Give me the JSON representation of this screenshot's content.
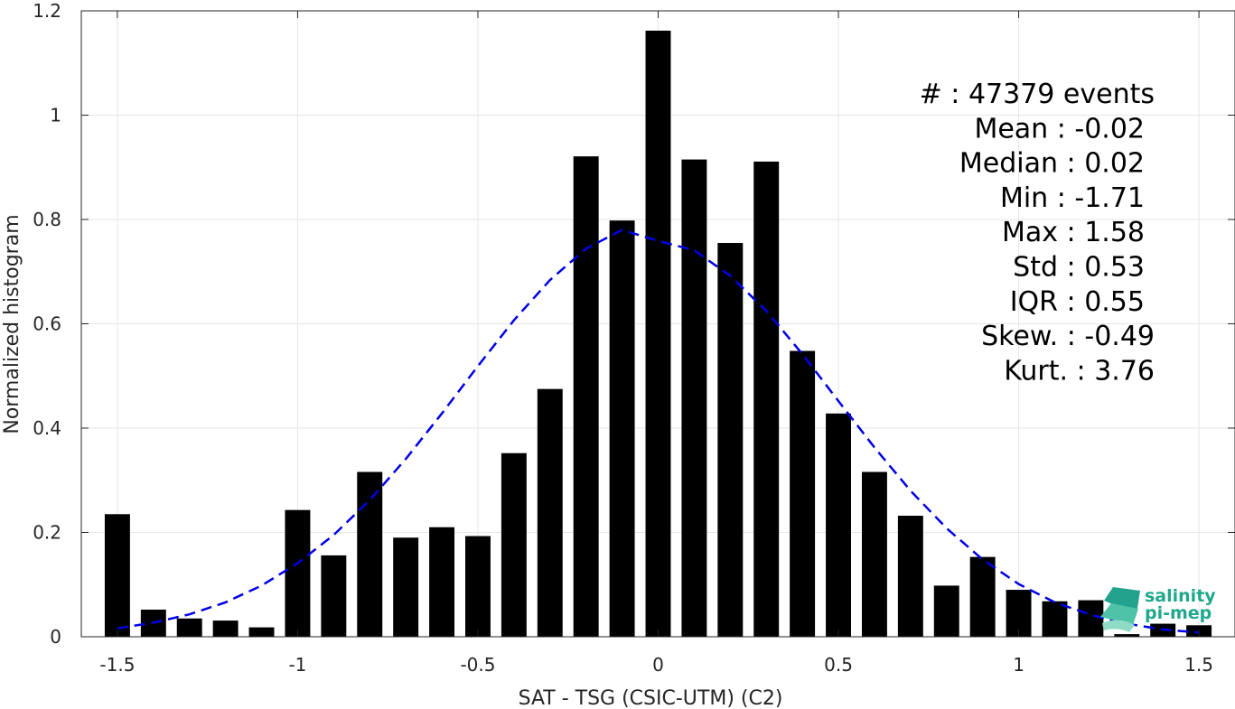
{
  "chart_data": {
    "type": "bar",
    "xlabel": "SAT - TSG (CSIC-UTM) (C2)",
    "ylabel": "Normalized histogram",
    "xlim": [
      -1.6,
      1.6
    ],
    "ylim": [
      0,
      1.2
    ],
    "grid": true,
    "xticks": [
      "-1.5",
      "-1",
      "-0.5",
      "0",
      "0.5",
      "1",
      "1.5"
    ],
    "xtick_values": [
      -1.5,
      -1,
      -0.5,
      0,
      0.5,
      1,
      1.5
    ],
    "yticks": [
      "0",
      "0.2",
      "0.4",
      "0.6",
      "0.8",
      "1",
      "1.2"
    ],
    "ytick_values": [
      0,
      0.2,
      0.4,
      0.6,
      0.8,
      1,
      1.2
    ],
    "bin_width": 0.07,
    "bar_color": "#000000",
    "bars": {
      "x": [
        -1.5,
        -1.4,
        -1.3,
        -1.2,
        -1.1,
        -1.0,
        -0.9,
        -0.8,
        -0.7,
        -0.6,
        -0.5,
        -0.4,
        -0.3,
        -0.2,
        -0.1,
        0.0,
        0.1,
        0.2,
        0.3,
        0.4,
        0.5,
        0.6,
        0.7,
        0.8,
        0.9,
        1.0,
        1.1,
        1.2,
        1.3,
        1.4,
        1.5
      ],
      "values": [
        0.235,
        0.052,
        0.035,
        0.031,
        0.018,
        0.243,
        0.156,
        0.316,
        0.19,
        0.21,
        0.193,
        0.352,
        0.475,
        0.921,
        0.798,
        1.162,
        0.915,
        0.755,
        0.911,
        0.548,
        0.428,
        0.316,
        0.232,
        0.098,
        0.153,
        0.09,
        0.068,
        0.07,
        0.005,
        0.025,
        0.022
      ]
    },
    "fit_curve": {
      "style": "dashed",
      "color": "#0000e6",
      "x": [
        -1.5,
        -1.4,
        -1.3,
        -1.2,
        -1.1,
        -1.0,
        -0.9,
        -0.8,
        -0.7,
        -0.6,
        -0.5,
        -0.4,
        -0.3,
        -0.2,
        -0.1,
        0.0,
        0.1,
        0.2,
        0.3,
        0.4,
        0.5,
        0.6,
        0.7,
        0.8,
        0.9,
        1.0,
        1.1,
        1.2,
        1.3,
        1.4,
        1.5
      ],
      "y": [
        0.016,
        0.027,
        0.043,
        0.066,
        0.098,
        0.141,
        0.195,
        0.262,
        0.341,
        0.428,
        0.519,
        0.607,
        0.684,
        0.744,
        0.78,
        0.759,
        0.741,
        0.692,
        0.625,
        0.542,
        0.452,
        0.363,
        0.28,
        0.208,
        0.148,
        0.101,
        0.066,
        0.042,
        0.025,
        0.014,
        0.008
      ]
    },
    "stats_position": "top-right",
    "stats": [
      "#  : 47379 events",
      "Mean : -0.02",
      "Median : 0.02",
      "Min : -1.71",
      "Max : 1.58",
      "Std : 0.53",
      "IQR : 0.55",
      "Skew. : -0.49",
      "Kurt. : 3.76"
    ]
  },
  "logo": {
    "line1": "salinity",
    "line2": "pi-mep",
    "color": "#1fa88c"
  }
}
